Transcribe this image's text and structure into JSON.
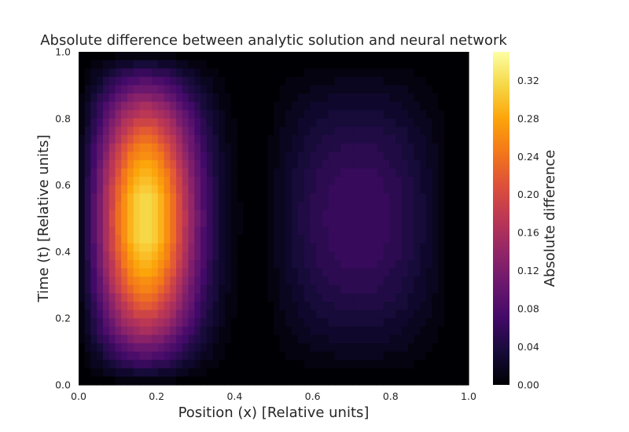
{
  "chart_data": {
    "type": "heatmap",
    "title": "Absolute difference between analytic solution and neural network",
    "xlabel": "Position (x) [Relative units]",
    "ylabel": "Time (t) [Relative units]",
    "colorbar_label": "Absolute difference",
    "xlim": [
      0.0,
      1.0
    ],
    "ylim": [
      0.0,
      1.0
    ],
    "x_ticks": [
      "0.0",
      "0.2",
      "0.4",
      "0.6",
      "0.8",
      "1.0"
    ],
    "y_ticks": [
      "0.0",
      "0.2",
      "0.4",
      "0.6",
      "0.8",
      "1.0"
    ],
    "colorbar_ticks": [
      "0.00",
      "0.04",
      "0.08",
      "0.12",
      "0.16",
      "0.20",
      "0.24",
      "0.28",
      "0.32"
    ],
    "colorbar_range": [
      0.0,
      0.35
    ],
    "colormap": "inferno",
    "grid": false,
    "hotspots": [
      {
        "x": 0.15,
        "t": 0.5,
        "value": 0.35
      },
      {
        "x": 0.68,
        "t": 0.5,
        "value": 0.07
      }
    ]
  }
}
